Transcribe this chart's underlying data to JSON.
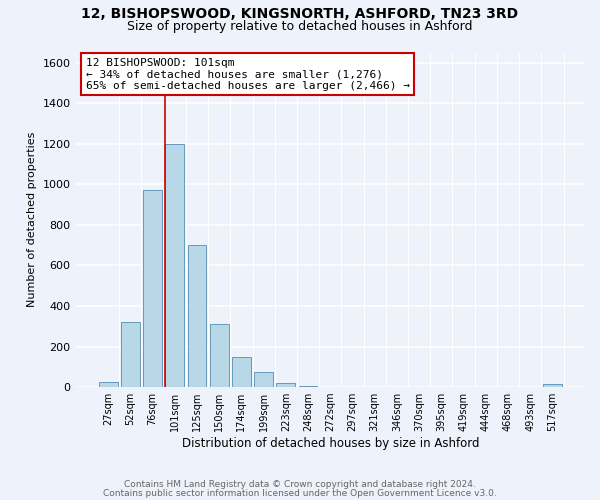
{
  "title1": "12, BISHOPSWOOD, KINGSNORTH, ASHFORD, TN23 3RD",
  "title2": "Size of property relative to detached houses in Ashford",
  "xlabel": "Distribution of detached houses by size in Ashford",
  "ylabel": "Number of detached properties",
  "bar_labels": [
    "27sqm",
    "52sqm",
    "76sqm",
    "101sqm",
    "125sqm",
    "150sqm",
    "174sqm",
    "199sqm",
    "223sqm",
    "248sqm",
    "272sqm",
    "297sqm",
    "321sqm",
    "346sqm",
    "370sqm",
    "395sqm",
    "419sqm",
    "444sqm",
    "468sqm",
    "493sqm",
    "517sqm"
  ],
  "bar_values": [
    25,
    320,
    970,
    1200,
    700,
    310,
    150,
    75,
    20,
    5,
    0,
    0,
    0,
    0,
    0,
    0,
    0,
    0,
    0,
    0,
    15
  ],
  "bar_color": "#b8d8e8",
  "bar_edge_color": "#6699bb",
  "vline_index": 3,
  "vline_color": "#cc0000",
  "annotation_title": "12 BISHOPSWOOD: 101sqm",
  "annotation_line1": "← 34% of detached houses are smaller (1,276)",
  "annotation_line2": "65% of semi-detached houses are larger (2,466) →",
  "annotation_box_color": "#ffffff",
  "annotation_box_edge": "#cc0000",
  "ylim": [
    0,
    1650
  ],
  "yticks": [
    0,
    200,
    400,
    600,
    800,
    1000,
    1200,
    1400,
    1600
  ],
  "footer1": "Contains HM Land Registry data © Crown copyright and database right 2024.",
  "footer2": "Contains public sector information licensed under the Open Government Licence v3.0.",
  "bg_color": "#eef2fa"
}
